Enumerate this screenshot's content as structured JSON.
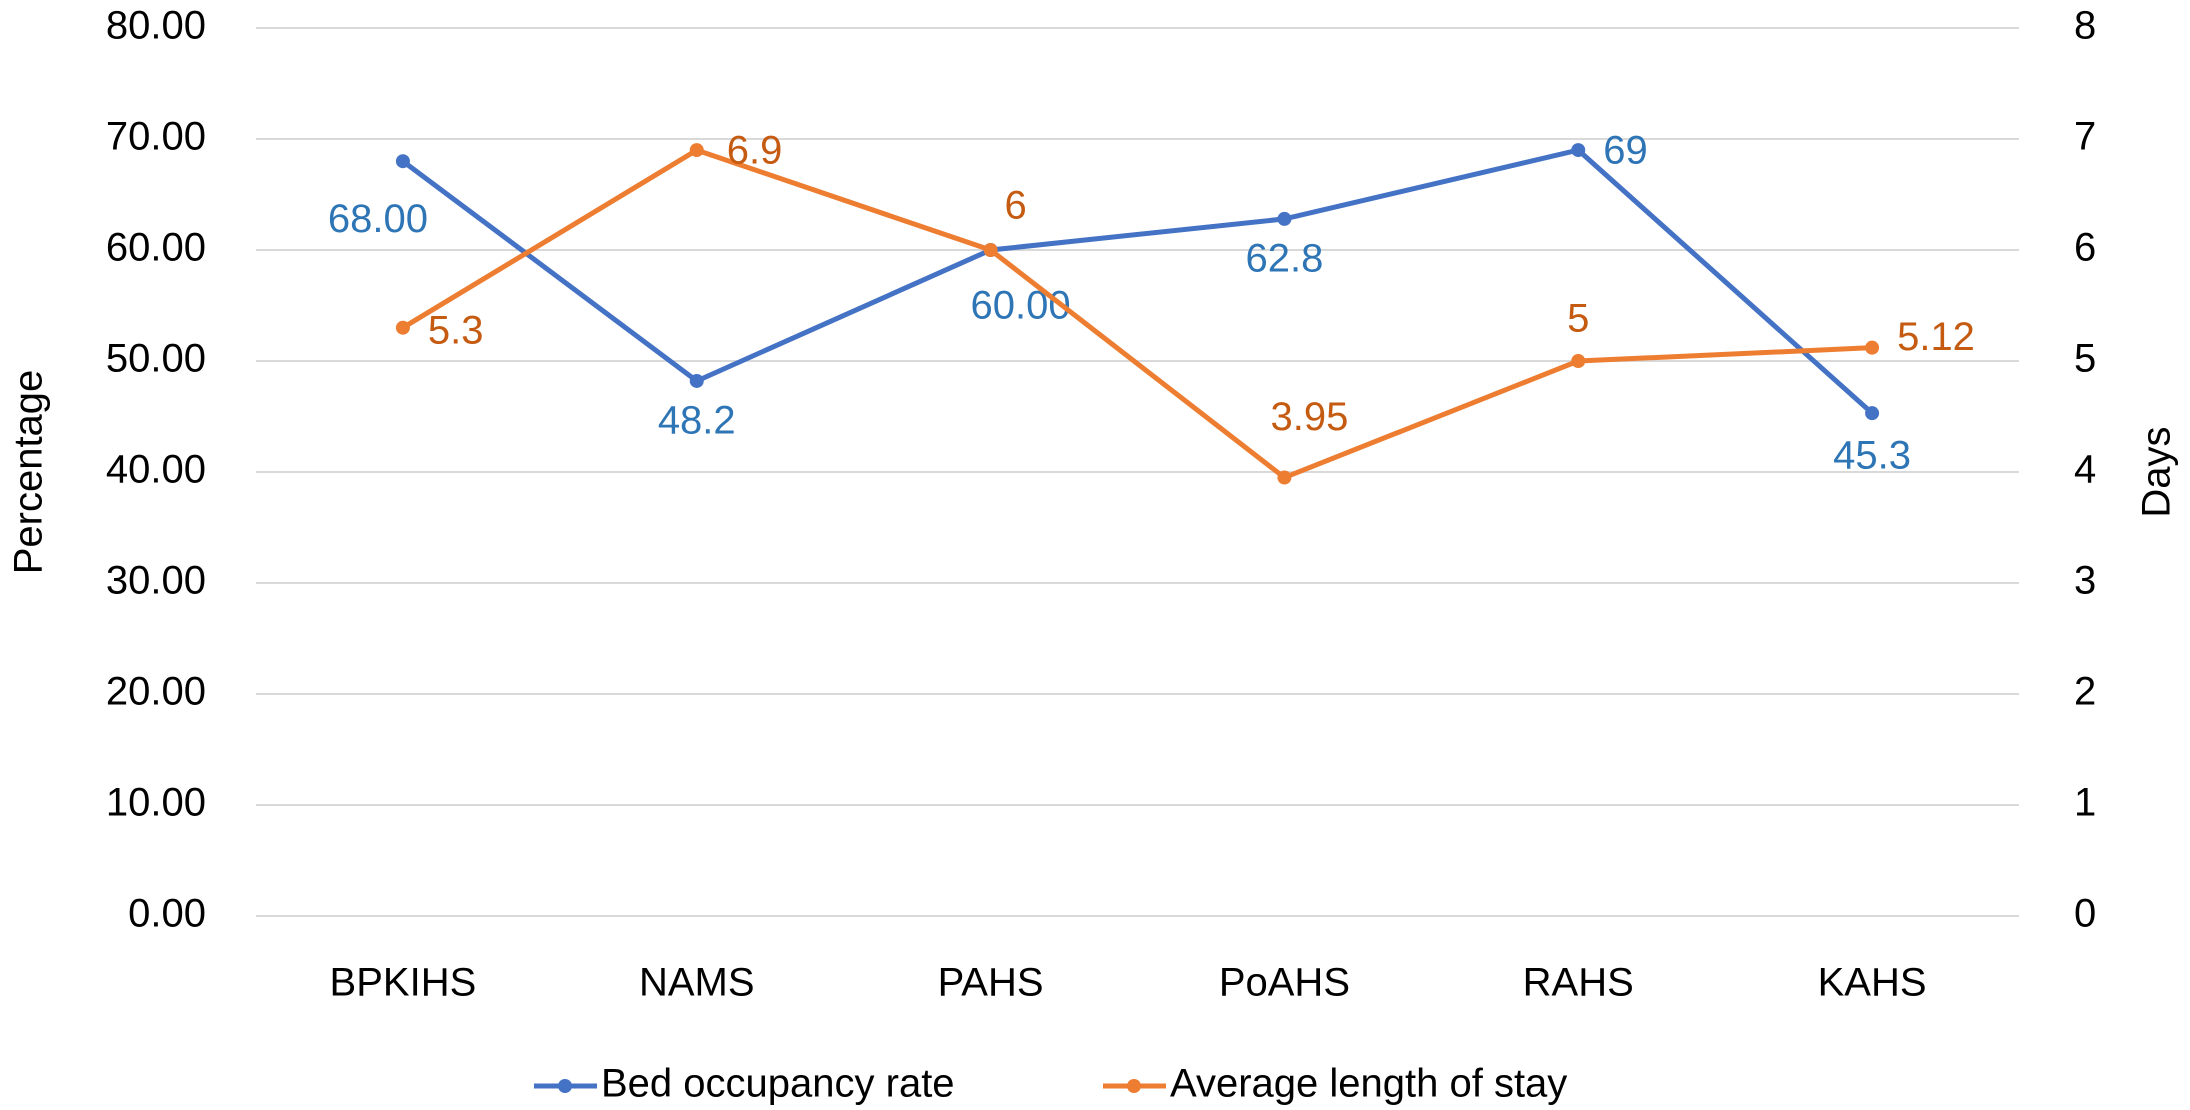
{
  "chart_data": {
    "type": "line",
    "categories": [
      "BPKIHS",
      "NAMS",
      "PAHS",
      "PoAHS",
      "RAHS",
      "KAHS"
    ],
    "series": [
      {
        "name": "Bed occupancy rate",
        "color": "#4472c4",
        "label_color": "#2e75b6",
        "values": [
          68.0,
          48.2,
          60.0,
          62.8,
          69,
          45.3
        ],
        "value_labels": [
          "68.00",
          "48.2",
          "60.00",
          "62.8",
          "69",
          "45.3"
        ]
      },
      {
        "name": "Average length of stay",
        "color": "#ed7d31",
        "label_color": "#c55a11",
        "axis": "y2",
        "values": [
          5.3,
          6.9,
          6,
          3.95,
          5,
          5.12
        ]
      }
    ],
    "ylabel": "Percentage",
    "y2label": "Days",
    "ylim": [
      0,
      80
    ],
    "yticks": [
      {
        "value": 0,
        "label": "0.00"
      },
      {
        "value": 10,
        "label": "10.00"
      },
      {
        "value": 20,
        "label": "20.00"
      },
      {
        "value": 30,
        "label": "30.00"
      },
      {
        "value": 40,
        "label": "40.00"
      },
      {
        "value": 50,
        "label": "50.00"
      },
      {
        "value": 60,
        "label": "60.00"
      },
      {
        "value": 70,
        "label": "70.00"
      },
      {
        "value": 80,
        "label": "80.00"
      }
    ],
    "y2lim": [
      0,
      8
    ],
    "y2ticks": [
      0,
      1,
      2,
      3,
      4,
      5,
      6,
      7,
      8
    ],
    "grid": true,
    "legend": "bottom"
  }
}
